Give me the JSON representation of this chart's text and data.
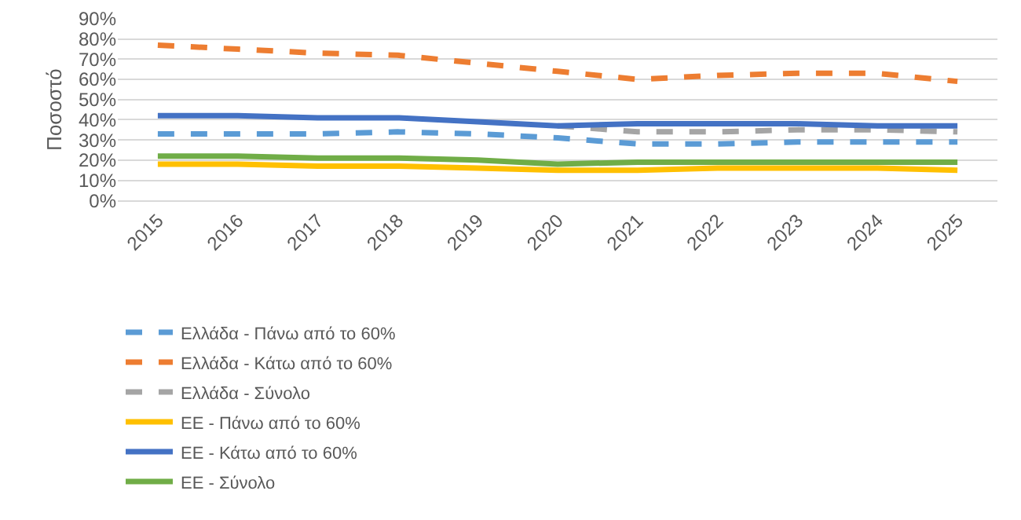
{
  "chart_data": {
    "type": "line",
    "ylabel": "Ποσοστό",
    "categories": [
      "2015",
      "2016",
      "2017",
      "2018",
      "2019",
      "2020",
      "2021",
      "2022",
      "2023",
      "2024",
      "2025"
    ],
    "series": [
      {
        "name": "Ελλάδα - Πάνω από το 60%",
        "color": "#5b9bd5",
        "line_style": "dashed",
        "values": [
          33,
          33,
          33,
          34,
          33,
          31,
          28,
          28,
          29,
          29,
          29
        ]
      },
      {
        "name": "Ελλάδα - Κάτω από το 60%",
        "color": "#ed7d31",
        "line_style": "dashed",
        "values": [
          77,
          75,
          73,
          72,
          68,
          64,
          60,
          62,
          63,
          63,
          59
        ]
      },
      {
        "name": "Ελλάδα - Σύνολο",
        "color": "#a5a5a5",
        "line_style": "dashed",
        "values": [
          null,
          null,
          null,
          null,
          null,
          37,
          34,
          34,
          35,
          35,
          34
        ]
      },
      {
        "name": "ΕΕ - Πάνω από το 60%",
        "color": "#ffc000",
        "line_style": "solid",
        "values": [
          18,
          18,
          17,
          17,
          16,
          15,
          15,
          16,
          16,
          16,
          15
        ]
      },
      {
        "name": "ΕΕ - Κάτω από το 60%",
        "color": "#4472c4",
        "line_style": "solid",
        "values": [
          42,
          42,
          41,
          41,
          39,
          37,
          38,
          38,
          38,
          37,
          37
        ]
      },
      {
        "name": "ΕΕ - Σύνολο",
        "color": "#70ad47",
        "line_style": "solid",
        "values": [
          22,
          22,
          21,
          21,
          20,
          18,
          19,
          19,
          19,
          19,
          19
        ]
      }
    ],
    "ylim": [
      0,
      90
    ],
    "yticks": [
      {
        "value": 0,
        "label": "0%"
      },
      {
        "value": 10,
        "label": "10%"
      },
      {
        "value": 20,
        "label": "20%"
      },
      {
        "value": 30,
        "label": "30%"
      },
      {
        "value": 40,
        "label": "40%"
      },
      {
        "value": 50,
        "label": "50%"
      },
      {
        "value": 60,
        "label": "60%"
      },
      {
        "value": 70,
        "label": "70%"
      },
      {
        "value": 80,
        "label": "80%"
      },
      {
        "value": 90,
        "label": "90%"
      }
    ],
    "grid": "y",
    "legend": "bottom left",
    "marker": "none"
  }
}
